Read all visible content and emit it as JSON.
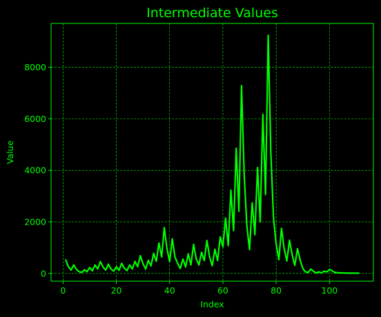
{
  "colors": {
    "background": "#000000",
    "foreground": "#00ff00",
    "grid": "#00ff00",
    "line": "#00ff00"
  },
  "chart_data": {
    "type": "line",
    "title": "Intermediate Values",
    "xlabel": "Index",
    "ylabel": "Value",
    "xlim": [
      -4.5,
      116.5
    ],
    "ylim": [
      -300,
      9700
    ],
    "xticks": [
      0,
      20,
      40,
      60,
      80,
      100
    ],
    "yticks": [
      0,
      2000,
      4000,
      6000,
      8000
    ],
    "grid": true,
    "grid_style": "dashed",
    "series": [
      {
        "x": [
          1,
          2,
          3,
          4,
          5,
          6,
          7,
          8,
          9,
          10,
          11,
          12,
          13,
          14,
          15,
          16,
          17,
          18,
          19,
          20,
          21,
          22,
          23,
          24,
          25,
          26,
          27,
          28,
          29,
          30,
          31,
          32,
          33,
          34,
          35,
          36,
          37,
          38,
          39,
          40,
          41,
          42,
          43,
          44,
          45,
          46,
          47,
          48,
          49,
          50,
          51,
          52,
          53,
          54,
          55,
          56,
          57,
          58,
          59,
          60,
          61,
          62,
          63,
          64,
          65,
          66,
          67,
          68,
          69,
          70,
          71,
          72,
          73,
          74,
          75,
          76,
          77,
          78,
          79,
          80,
          81,
          82,
          83,
          84,
          85,
          86,
          87,
          88,
          89,
          90,
          91,
          92,
          93,
          94,
          95,
          96,
          97,
          98,
          99,
          100,
          101,
          102,
          103,
          104,
          105,
          106,
          107,
          108,
          109,
          110,
          111
        ],
        "y": [
          520,
          260,
          130,
          330,
          160,
          70,
          40,
          140,
          70,
          230,
          100,
          330,
          170,
          460,
          250,
          130,
          360,
          170,
          90,
          260,
          120,
          390,
          200,
          110,
          330,
          170,
          470,
          260,
          690,
          380,
          170,
          510,
          290,
          780,
          470,
          1180,
          640,
          1780,
          960,
          460,
          1340,
          640,
          390,
          190,
          560,
          250,
          760,
          330,
          1130,
          560,
          330,
          820,
          500,
          1280,
          640,
          300,
          940,
          500,
          1420,
          1030,
          2150,
          1080,
          3230,
          1660,
          4860,
          2410,
          7290,
          3800,
          1850,
          920,
          2740,
          1500,
          4110,
          2000,
          6170,
          3060,
          9240,
          4650,
          2150,
          1140,
          530,
          1750,
          960,
          480,
          1290,
          720,
          310,
          960,
          520,
          190,
          60,
          40,
          170,
          80,
          20,
          60,
          20,
          90,
          60,
          150,
          100,
          40,
          30,
          20,
          20,
          15,
          10,
          10,
          10,
          10,
          10
        ]
      }
    ]
  }
}
